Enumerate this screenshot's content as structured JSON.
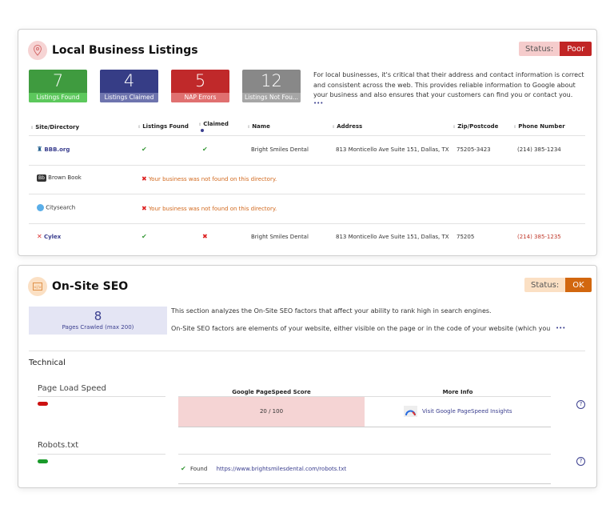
{
  "listings": {
    "title": "Local Business Listings",
    "icon": "map-pin-icon",
    "status_label": "Status:",
    "status_value": "Poor",
    "stats": [
      {
        "value": "7",
        "label": "Listings Found",
        "color": "#3f9b3f",
        "label_color": "#5cc85c"
      },
      {
        "value": "4",
        "label": "Listings Claimed",
        "color": "#363d86",
        "label_color": "#6e74ae"
      },
      {
        "value": "5",
        "label": "NAP Errors",
        "color": "#c0292a",
        "label_color": "#e07070"
      },
      {
        "value": "12",
        "label": "Listings Not Fou...",
        "color": "#888888",
        "label_color": "#a6a6a6"
      }
    ],
    "description": "For local businesses, it's critical that their address and contact information is correct and consistent across the web. This provides reliable information to Google about your business and also ensures that your customers can find you or contact you.",
    "more": "•••",
    "columns": [
      "Site/Directory",
      "Listings Found",
      "Claimed",
      "Name",
      "Address",
      "Zip/Postcode",
      "Phone Number"
    ],
    "rows": [
      {
        "site": "BBB.org",
        "found": true,
        "claimed": true,
        "name": "Bright Smiles Dental",
        "address": "813 Monticello Ave Suite 151, Dallas, TX",
        "zip": "75205-3423",
        "phone": "(214) 385-1234"
      },
      {
        "site": "Brown Book",
        "message": "Your business was not found on this directory."
      },
      {
        "site": "Citysearch",
        "message": "Your business was not found on this directory."
      },
      {
        "site": "Cylex",
        "found": true,
        "claimed": false,
        "name": "Bright Smiles Dental",
        "address": "813 Monticello Ave Suite 151, Dallas, TX",
        "zip": "75205",
        "phone": "(214) 385-1235"
      }
    ]
  },
  "seo": {
    "title": "On-Site SEO",
    "icon": "code-window-icon",
    "status_label": "Status:",
    "status_value": "OK",
    "pages_crawled": "8",
    "pages_label": "Pages Crawled (max 200)",
    "desc1": "This section analyzes the On-Site SEO factors that affect your ability to rank high in search engines.",
    "desc2": "On-Site SEO factors are elements of your website, either visible on the page or in the code of your website (which you",
    "more": "•••",
    "section": "Technical",
    "page_load": {
      "label": "Page Load Speed",
      "status_color": "#cc1111",
      "col_score": "Google PageSpeed Score",
      "col_info": "More Info",
      "score": "20 / 100",
      "link": "Visit Google PageSpeed Insights"
    },
    "robots": {
      "label": "Robots.txt",
      "status_color": "#1a9a2a",
      "found": "Found",
      "url": "https://www.brightsmilesdental.com/robots.txt"
    },
    "help": "?"
  }
}
